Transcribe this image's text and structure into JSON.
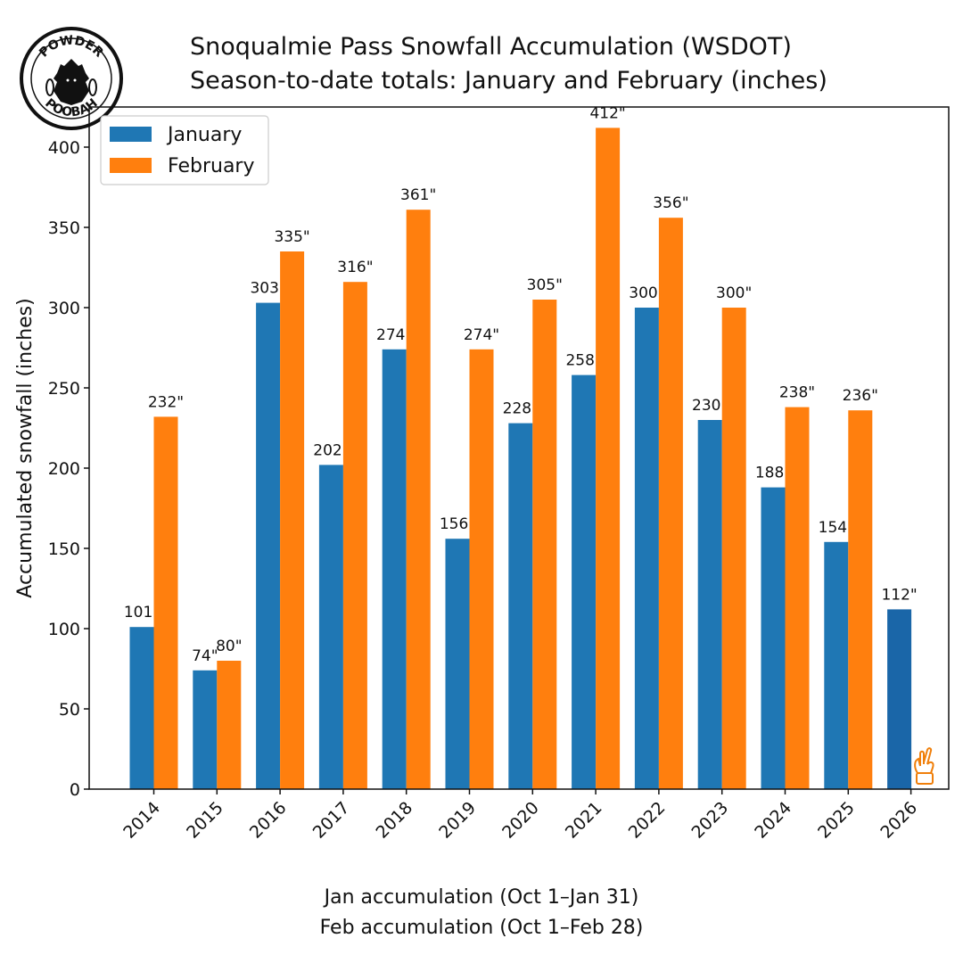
{
  "header": {
    "title": "Snoqualmie Pass Snowfall Accumulation (WSDOT)",
    "subtitle": "Season-to-date totals: January and February (inches)"
  },
  "logo": {
    "top_text": "POWDER",
    "bottom_text": "POOBAH",
    "icon": "yeti-mascot-icon"
  },
  "caption": {
    "line1": "Jan accumulation (Oct 1–Jan 31)",
    "line2": "Feb accumulation (Oct 1–Feb 28)"
  },
  "chart_data": {
    "type": "bar",
    "title": "Snoqualmie Pass Snowfall Accumulation (WSDOT)",
    "subtitle": "Season-to-date totals: January and February (inches)",
    "xlabel": "",
    "ylabel": "Accumulated snowfall (inches)",
    "ylim": [
      0,
      425
    ],
    "yticks": [
      0,
      50,
      100,
      150,
      200,
      250,
      300,
      350,
      400
    ],
    "categories": [
      "2014",
      "2015",
      "2016",
      "2017",
      "2018",
      "2019",
      "2020",
      "2021",
      "2022",
      "2023",
      "2024",
      "2025",
      "2026"
    ],
    "series": [
      {
        "name": "January",
        "color": "#1f77b4",
        "values": [
          101,
          74,
          303,
          202,
          274,
          156,
          228,
          258,
          300,
          230,
          188,
          154,
          112
        ],
        "labels": [
          "101\"",
          "74\"",
          "303\"",
          "202\"",
          "274\"",
          "156\"",
          "228\"",
          "258\"",
          "300\"",
          "230\"",
          "188\"",
          "154\"",
          "112\""
        ]
      },
      {
        "name": "February",
        "color": "#ff7f0e",
        "values": [
          232,
          80,
          335,
          316,
          361,
          274,
          305,
          412,
          356,
          300,
          238,
          236,
          null
        ],
        "labels": [
          "232\"",
          "80\"",
          "335\"",
          "316\"",
          "361\"",
          "274\"",
          "305\"",
          "412\"",
          "356\"",
          "300\"",
          "238\"",
          "236\"",
          ""
        ]
      }
    ],
    "highlight_color": "#1a66a8",
    "highlight_category": "2026",
    "annotation_icon": "fingers-crossed-icon",
    "legend": "top-left",
    "grid": false
  }
}
